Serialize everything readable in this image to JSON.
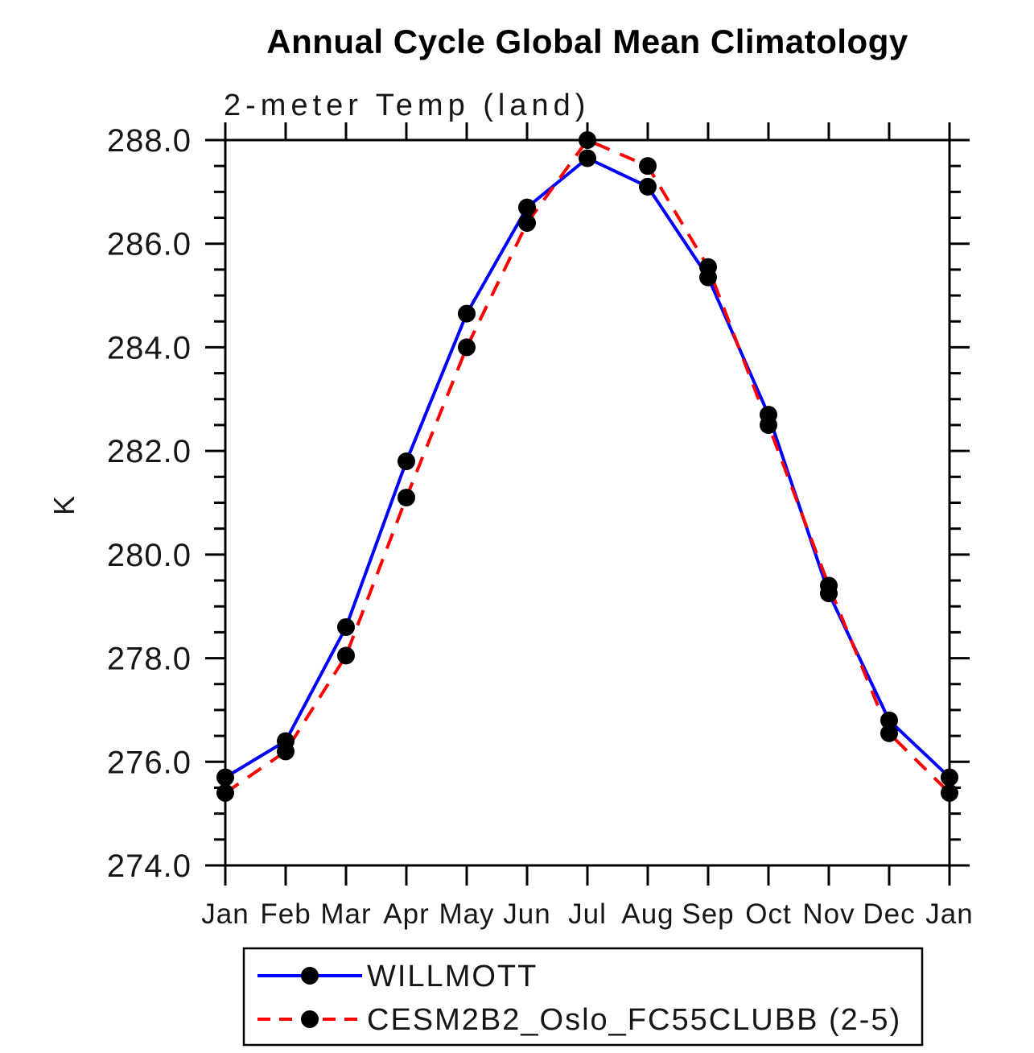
{
  "chart_data": {
    "type": "line",
    "title": "Annual Cycle Global Mean Climatology",
    "subtitle": "2-meter Temp (land)",
    "ylabel": "K",
    "xlabel": "",
    "ylim": [
      274.0,
      288.0
    ],
    "ytick_labels": [
      "274.0",
      "276.0",
      "278.0",
      "280.0",
      "282.0",
      "284.0",
      "286.0",
      "288.0"
    ],
    "ytick_major_interval": 2.0,
    "ytick_minor_interval": 0.5,
    "grid": false,
    "legend_position": "bottom",
    "x_categories": [
      "Jan",
      "Feb",
      "Mar",
      "Apr",
      "May",
      "Jun",
      "Jul",
      "Aug",
      "Sep",
      "Oct",
      "Nov",
      "Dec",
      "Jan"
    ],
    "series": [
      {
        "name": "WILLMOTT",
        "color": "#0000ff",
        "line_style": "solid",
        "marker": "filled-circle",
        "marker_color": "#000000",
        "values": [
          275.7,
          276.4,
          278.6,
          281.8,
          284.65,
          286.7,
          287.65,
          287.1,
          285.35,
          282.7,
          279.25,
          276.8,
          275.7
        ]
      },
      {
        "name": "CESM2B2_Oslo_FC55CLUBB (2-5)",
        "color": "#ff0000",
        "line_style": "dashed",
        "marker": "filled-circle",
        "marker_color": "#000000",
        "values": [
          275.4,
          276.2,
          278.05,
          281.1,
          284.0,
          286.4,
          288.0,
          287.5,
          285.55,
          282.5,
          279.4,
          276.55,
          275.4
        ]
      }
    ]
  },
  "colors": {
    "axis": "#000000",
    "background": "#ffffff",
    "willmott_line": "#0000ff",
    "cesm_line": "#ff0000",
    "marker": "#000000"
  }
}
